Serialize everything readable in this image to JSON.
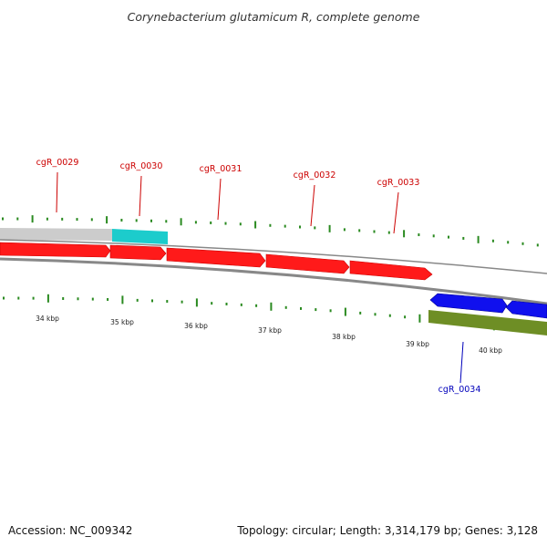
{
  "title": "Corynebacterium glutamicum R, complete genome",
  "footer": {
    "accession": "Accession: NC_009342",
    "topology": "Topology: circular; Length: 3,314,179 bp; Genes: 3,128"
  },
  "colors": {
    "forward_cds": "#ff1a1a",
    "reverse_cds": "#1010ee",
    "forward_label": "#cc0000",
    "reverse_label": "#0000bb",
    "cyan_feature": "#1ccccc",
    "gray_feature": "#cccccc",
    "green_feature": "#6e8e25",
    "tick": "#2a8a20",
    "backbone": "#888888"
  },
  "kbp_ticks": [
    "34 kbp",
    "35 kbp",
    "36 kbp",
    "37 kbp",
    "38 kbp",
    "39 kbp",
    "40 kbp"
  ],
  "genes_forward": [
    {
      "label": "cgR_0029"
    },
    {
      "label": "cgR_0030"
    },
    {
      "label": "cgR_0031"
    },
    {
      "label": "cgR_0032"
    },
    {
      "label": "cgR_0033"
    }
  ],
  "genes_reverse": [
    {
      "label": "cgR_0034"
    }
  ]
}
